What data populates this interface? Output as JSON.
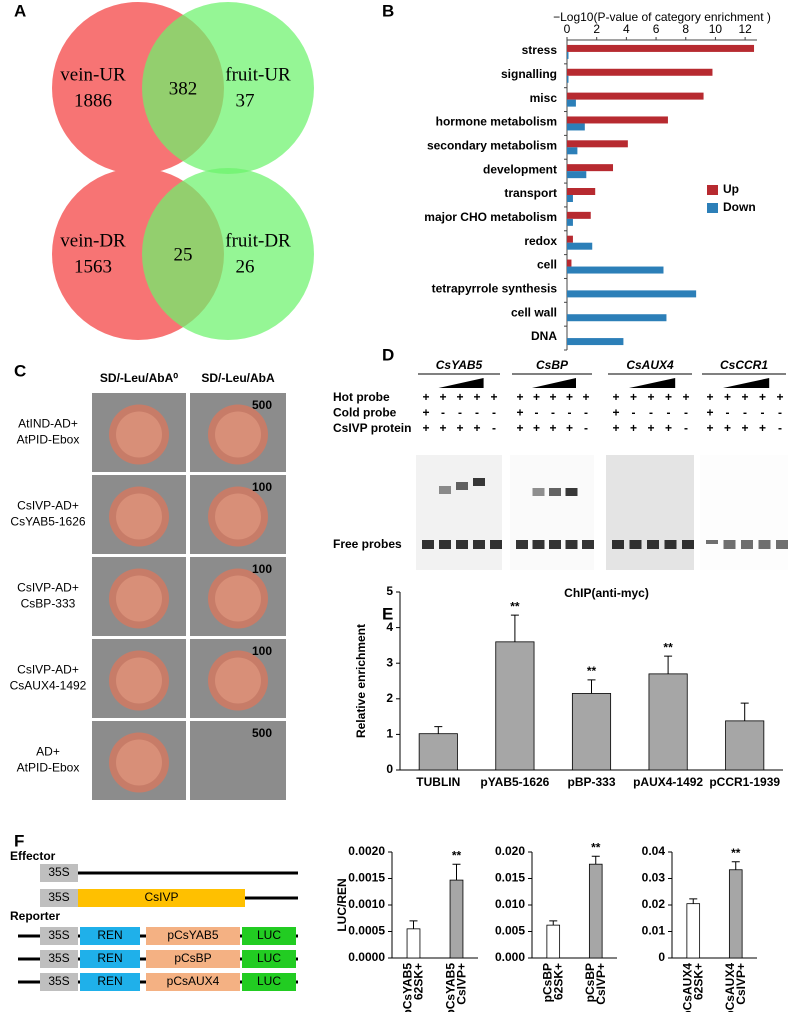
{
  "panel_labels": [
    "A",
    "B",
    "C",
    "D",
    "E",
    "F"
  ],
  "venn": [
    {
      "left_label": "vein-UR",
      "left_count": 1886,
      "both_count": 382,
      "right_label": "fruit-UR",
      "right_count": 37
    },
    {
      "left_label": "vein-DR",
      "left_count": 1563,
      "both_count": 25,
      "right_label": "fruit-DR",
      "right_count": 26
    }
  ],
  "chart_data": [
    {
      "type": "hbar",
      "title": "−Log10(P-value of category enrichment )",
      "categories": [
        "stress",
        "signalling",
        "misc",
        "hormone metabolism",
        "secondary metabolism",
        "development",
        "transport",
        "major CHO metabolism",
        "redox",
        "cell",
        "tetrapyrrole synthesis",
        "cell wall",
        "DNA"
      ],
      "series": [
        {
          "name": "Up",
          "color": "#b72a30",
          "values": [
            12.6,
            9.8,
            9.2,
            6.8,
            4.1,
            3.1,
            1.9,
            1.6,
            0.4,
            0.3,
            0,
            0,
            0
          ]
        },
        {
          "name": "Down",
          "color": "#2c7fb8",
          "values": [
            0.1,
            0.1,
            0.6,
            1.2,
            0.7,
            1.3,
            0.4,
            0.4,
            1.7,
            6.5,
            8.7,
            6.7,
            3.8
          ]
        }
      ],
      "xlim": [
        0,
        12.8
      ],
      "xticks": [
        0,
        2,
        4,
        6,
        8,
        10,
        12
      ],
      "legend": "right"
    },
    {
      "type": "bar",
      "title": "ChIP(anti-myc)",
      "y_label": "Relative enrichment",
      "categories": [
        "TUBLIN",
        "pYAB5-1626",
        "pBP-333",
        "pAUX4-1492",
        "pCCR1-1939"
      ],
      "values": [
        1.02,
        3.6,
        2.15,
        2.7,
        1.38
      ],
      "errors": [
        0.2,
        0.75,
        0.38,
        0.5,
        0.5
      ],
      "colors": [
        "#a6a6a6",
        "#a6a6a6",
        "#a6a6a6",
        "#a6a6a6",
        "#a6a6a6"
      ],
      "annotations": [
        null,
        "**",
        "**",
        "**",
        null
      ],
      "ylim": [
        0,
        5
      ],
      "yticks": [
        0,
        1,
        2,
        3,
        4,
        5
      ]
    },
    {
      "type": "bar",
      "y_label": "LUC/REN",
      "categories": [
        [
          "pCsYAB5",
          "62SK+"
        ],
        [
          "pCsYAB5",
          "CsIVP+"
        ]
      ],
      "values": [
        0.00055,
        0.00147
      ],
      "errors": [
        0.00015,
        0.0003
      ],
      "colors": [
        "#ffffff",
        "#a6a6a6"
      ],
      "annotations": [
        null,
        "**"
      ],
      "ylim": [
        0,
        0.002
      ],
      "yticks": [
        {
          "value": 0,
          "label": "0.0000"
        },
        {
          "value": 0.0005,
          "label": "0.0005"
        },
        {
          "value": 0.001,
          "label": "0.0010"
        },
        {
          "value": 0.0015,
          "label": "0.0015"
        },
        {
          "value": 0.002,
          "label": "0.0020"
        }
      ]
    },
    {
      "type": "bar",
      "categories": [
        [
          "pCsBP",
          "62SK+"
        ],
        [
          "pCsBP",
          "CsIVP+"
        ]
      ],
      "values": [
        0.0062,
        0.0177
      ],
      "errors": [
        0.0008,
        0.0015
      ],
      "colors": [
        "#ffffff",
        "#a6a6a6"
      ],
      "annotations": [
        null,
        "**"
      ],
      "ylim": [
        0,
        0.02
      ],
      "yticks": [
        {
          "value": 0,
          "label": "0.000"
        },
        {
          "value": 0.005,
          "label": "0.005"
        },
        {
          "value": 0.01,
          "label": "0.010"
        },
        {
          "value": 0.015,
          "label": "0.015"
        },
        {
          "value": 0.02,
          "label": "0.020"
        }
      ]
    },
    {
      "type": "bar",
      "categories": [
        [
          "pCsAUX4",
          "62SK+"
        ],
        [
          "pCsAUX4",
          "CsIVP+"
        ]
      ],
      "values": [
        0.0205,
        0.0333
      ],
      "errors": [
        0.0018,
        0.003
      ],
      "colors": [
        "#ffffff",
        "#a6a6a6"
      ],
      "annotations": [
        null,
        "**"
      ],
      "ylim": [
        0,
        0.04
      ],
      "yticks": [
        0,
        0.01,
        0.02,
        0.03,
        0.04
      ]
    }
  ],
  "yeast": {
    "headers": [
      "SD/-Leu/AbA⁰",
      "SD/-Leu/AbA"
    ],
    "rows": [
      {
        "label": [
          "AtIND-AD+",
          "AtPID-Ebox"
        ],
        "aba": 500,
        "colony": [
          true,
          true
        ]
      },
      {
        "label": [
          "CsIVP-AD+",
          "CsYAB5-1626"
        ],
        "aba": 100,
        "colony": [
          true,
          true
        ]
      },
      {
        "label": [
          "CsIVP-AD+",
          "CsBP-333"
        ],
        "aba": 100,
        "colony": [
          true,
          true
        ]
      },
      {
        "label": [
          "CsIVP-AD+",
          "CsAUX4-1492"
        ],
        "aba": 100,
        "colony": [
          true,
          true
        ]
      },
      {
        "label": [
          "AD+",
          "AtPID-Ebox"
        ],
        "aba": 500,
        "colony": [
          true,
          false
        ]
      }
    ]
  },
  "emsa": {
    "row_labels": [
      "Hot probe",
      "Cold probe",
      "CsIVP protein"
    ],
    "free_label": "Free probes",
    "genes": [
      {
        "name": "CsYAB5",
        "signs": [
          [
            "+",
            "+",
            "+",
            "+",
            "+"
          ],
          [
            "+",
            "-",
            "-",
            "-",
            "-"
          ],
          [
            "+",
            "+",
            "+",
            "+",
            "-"
          ]
        ]
      },
      {
        "name": "CsBP",
        "signs": [
          [
            "+",
            "+",
            "+",
            "+",
            "+"
          ],
          [
            "+",
            "-",
            "-",
            "-",
            "-"
          ],
          [
            "+",
            "+",
            "+",
            "+",
            "-"
          ]
        ]
      },
      {
        "name": "CsAUX4",
        "signs": [
          [
            "+",
            "+",
            "+",
            "+",
            "+"
          ],
          [
            "+",
            "-",
            "-",
            "-",
            "-"
          ],
          [
            "+",
            "+",
            "+",
            "+",
            "-"
          ]
        ]
      },
      {
        "name": "CsCCR1",
        "signs": [
          [
            "+",
            "+",
            "+",
            "+",
            "+"
          ],
          [
            "+",
            "-",
            "-",
            "-",
            "-"
          ],
          [
            "+",
            "+",
            "+",
            "+",
            "-"
          ]
        ]
      }
    ]
  },
  "constructs": {
    "effector_label": "Effector",
    "effector_rows": [
      [
        "35S"
      ],
      [
        "35S",
        "CsIVP"
      ]
    ],
    "reporter_label": "Reporter",
    "reporter_rows": [
      [
        "35S",
        "REN",
        "pCsYAB5",
        "LUC"
      ],
      [
        "35S",
        "REN",
        "pCsBP",
        "LUC"
      ],
      [
        "35S",
        "REN",
        "pCsAUX4",
        "LUC"
      ]
    ]
  }
}
